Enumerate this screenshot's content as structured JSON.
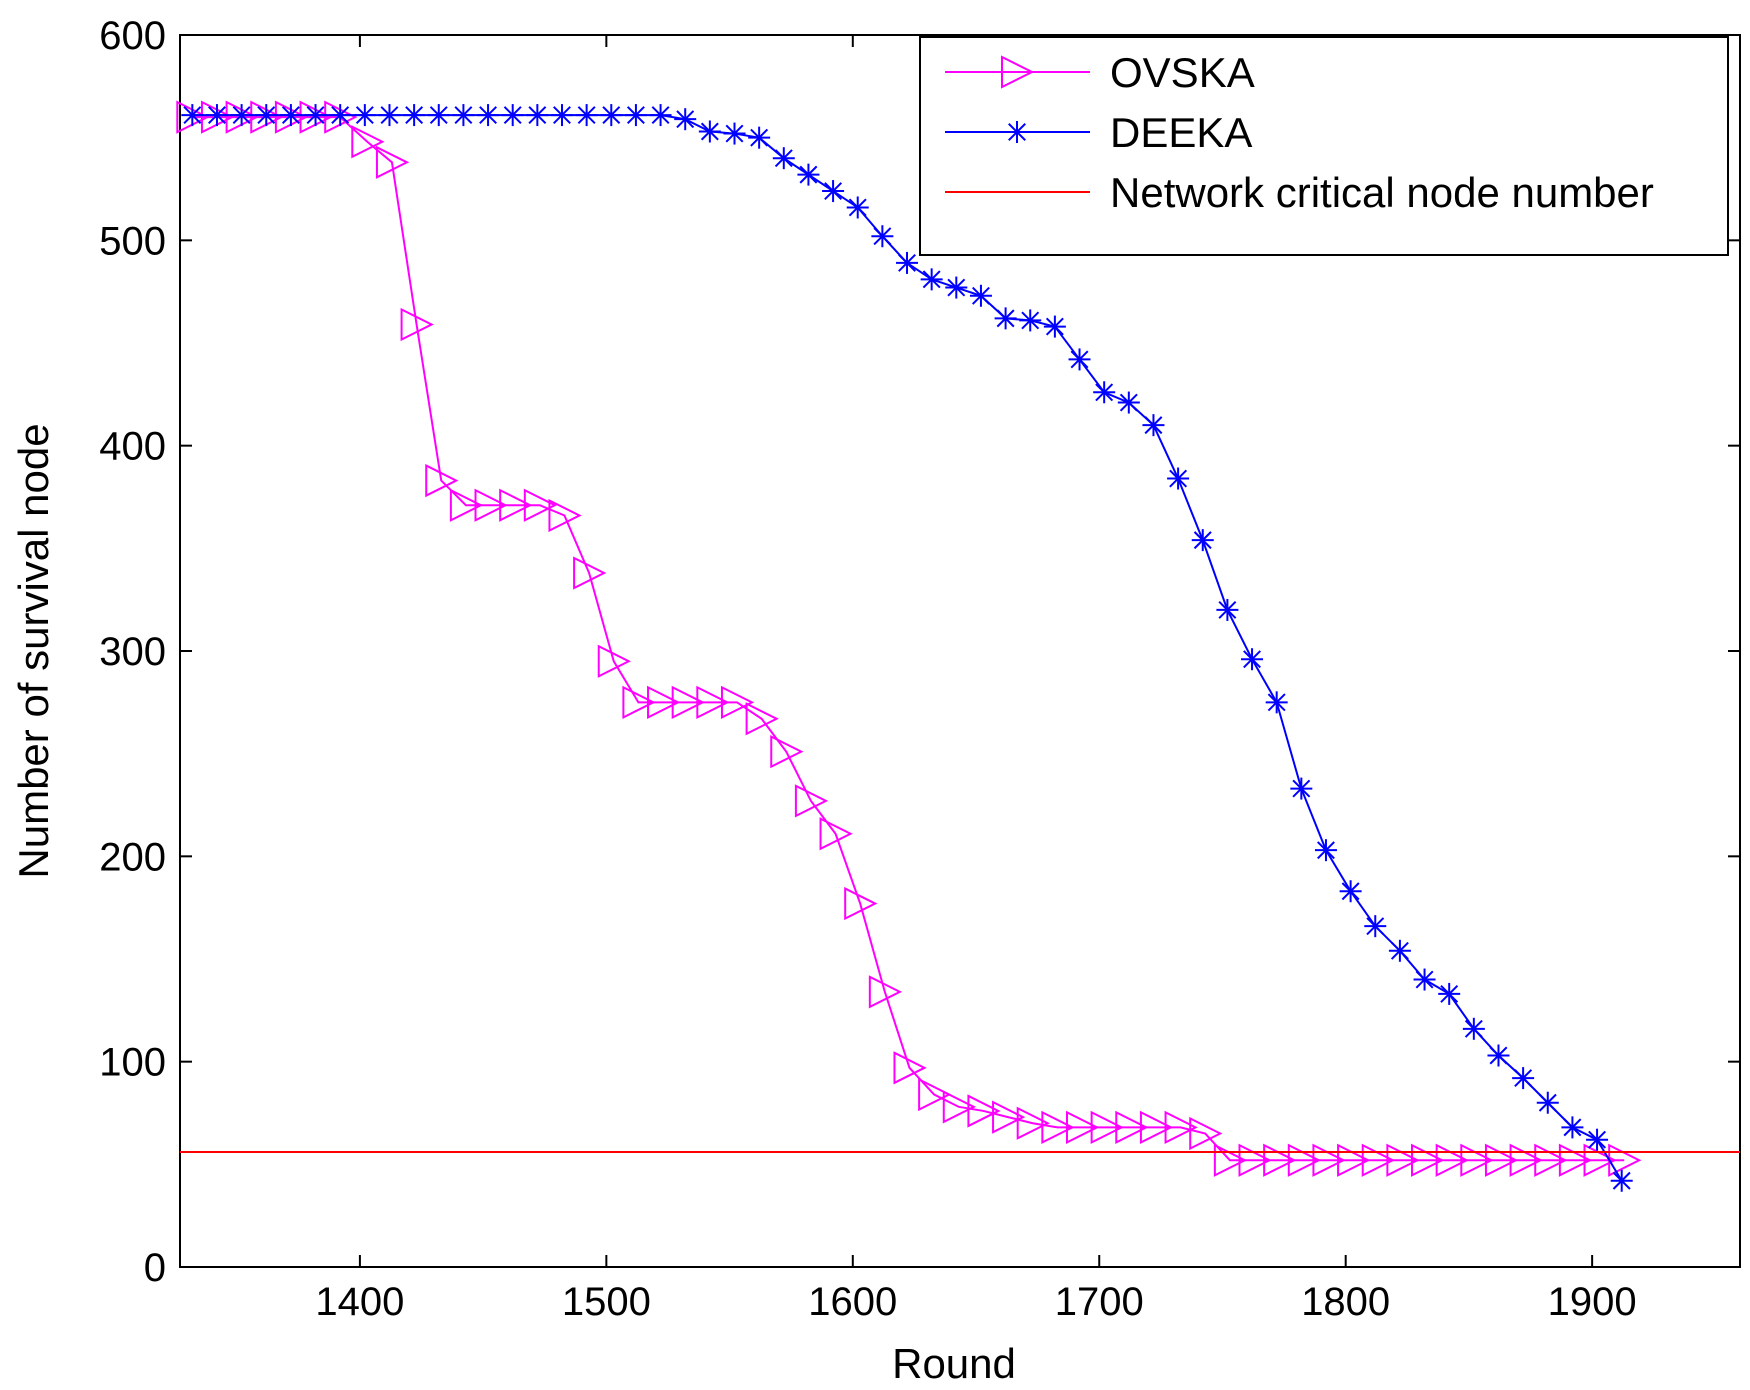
{
  "chart_data": {
    "type": "line",
    "title": "",
    "xlabel": "Round",
    "ylabel": "Number of survival node",
    "xlim": [
      1327,
      1960
    ],
    "ylim": [
      0,
      600
    ],
    "xticks": [
      1400,
      1500,
      1600,
      1700,
      1800,
      1900
    ],
    "yticks": [
      0,
      100,
      200,
      300,
      400,
      500,
      600
    ],
    "legend_position": "top-right",
    "series": [
      {
        "name": "OVSKA",
        "color": "#ff00ff",
        "marker": "triangle-right",
        "points": [
          [
            1332,
            560
          ],
          [
            1342,
            560
          ],
          [
            1352,
            560
          ],
          [
            1362,
            560
          ],
          [
            1372,
            560
          ],
          [
            1382,
            560
          ],
          [
            1392,
            560
          ],
          [
            1403,
            548
          ],
          [
            1413,
            538
          ],
          [
            1423,
            459
          ],
          [
            1433,
            383
          ],
          [
            1443,
            371
          ],
          [
            1453,
            371
          ],
          [
            1463,
            371
          ],
          [
            1473,
            371
          ],
          [
            1483,
            366
          ],
          [
            1493,
            338
          ],
          [
            1503,
            295
          ],
          [
            1513,
            275
          ],
          [
            1523,
            275
          ],
          [
            1533,
            275
          ],
          [
            1543,
            275
          ],
          [
            1553,
            275
          ],
          [
            1563,
            267
          ],
          [
            1573,
            251
          ],
          [
            1583,
            227
          ],
          [
            1593,
            211
          ],
          [
            1603,
            177
          ],
          [
            1613,
            134
          ],
          [
            1623,
            97
          ],
          [
            1633,
            84
          ],
          [
            1643,
            78
          ],
          [
            1653,
            76
          ],
          [
            1663,
            73
          ],
          [
            1673,
            70
          ],
          [
            1683,
            68
          ],
          [
            1693,
            68
          ],
          [
            1703,
            68
          ],
          [
            1713,
            68
          ],
          [
            1723,
            68
          ],
          [
            1733,
            68
          ],
          [
            1743,
            65
          ],
          [
            1753,
            52
          ],
          [
            1763,
            52
          ],
          [
            1773,
            52
          ],
          [
            1783,
            52
          ],
          [
            1793,
            52
          ],
          [
            1803,
            52
          ],
          [
            1813,
            52
          ],
          [
            1823,
            52
          ],
          [
            1833,
            52
          ],
          [
            1843,
            52
          ],
          [
            1853,
            52
          ],
          [
            1863,
            52
          ],
          [
            1873,
            52
          ],
          [
            1883,
            52
          ],
          [
            1893,
            52
          ],
          [
            1903,
            52
          ],
          [
            1913,
            52
          ]
        ]
      },
      {
        "name": "DEEKA",
        "color": "#0000ff",
        "marker": "asterisk",
        "points": [
          [
            1332,
            561
          ],
          [
            1342,
            561
          ],
          [
            1352,
            561
          ],
          [
            1362,
            561
          ],
          [
            1372,
            561
          ],
          [
            1382,
            561
          ],
          [
            1392,
            561
          ],
          [
            1402,
            561
          ],
          [
            1412,
            561
          ],
          [
            1422,
            561
          ],
          [
            1432,
            561
          ],
          [
            1442,
            561
          ],
          [
            1452,
            561
          ],
          [
            1462,
            561
          ],
          [
            1472,
            561
          ],
          [
            1482,
            561
          ],
          [
            1492,
            561
          ],
          [
            1502,
            561
          ],
          [
            1512,
            561
          ],
          [
            1522,
            561
          ],
          [
            1532,
            559
          ],
          [
            1542,
            553
          ],
          [
            1552,
            552
          ],
          [
            1562,
            550
          ],
          [
            1572,
            540
          ],
          [
            1582,
            532
          ],
          [
            1592,
            524
          ],
          [
            1602,
            516
          ],
          [
            1612,
            502
          ],
          [
            1622,
            489
          ],
          [
            1632,
            481
          ],
          [
            1642,
            477
          ],
          [
            1652,
            473
          ],
          [
            1662,
            462
          ],
          [
            1672,
            461
          ],
          [
            1682,
            458
          ],
          [
            1692,
            442
          ],
          [
            1702,
            426
          ],
          [
            1712,
            421
          ],
          [
            1722,
            410
          ],
          [
            1732,
            384
          ],
          [
            1742,
            354
          ],
          [
            1752,
            320
          ],
          [
            1762,
            296
          ],
          [
            1772,
            275
          ],
          [
            1782,
            233
          ],
          [
            1792,
            203
          ],
          [
            1802,
            183
          ],
          [
            1812,
            166
          ],
          [
            1822,
            154
          ],
          [
            1832,
            140
          ],
          [
            1842,
            133
          ],
          [
            1852,
            116
          ],
          [
            1862,
            103
          ],
          [
            1872,
            92
          ],
          [
            1882,
            80
          ],
          [
            1892,
            68
          ],
          [
            1902,
            62
          ],
          [
            1912,
            42
          ]
        ]
      },
      {
        "name": "Network critical node number",
        "color": "#ff0000",
        "marker": "none",
        "constant_y": 56
      }
    ]
  }
}
